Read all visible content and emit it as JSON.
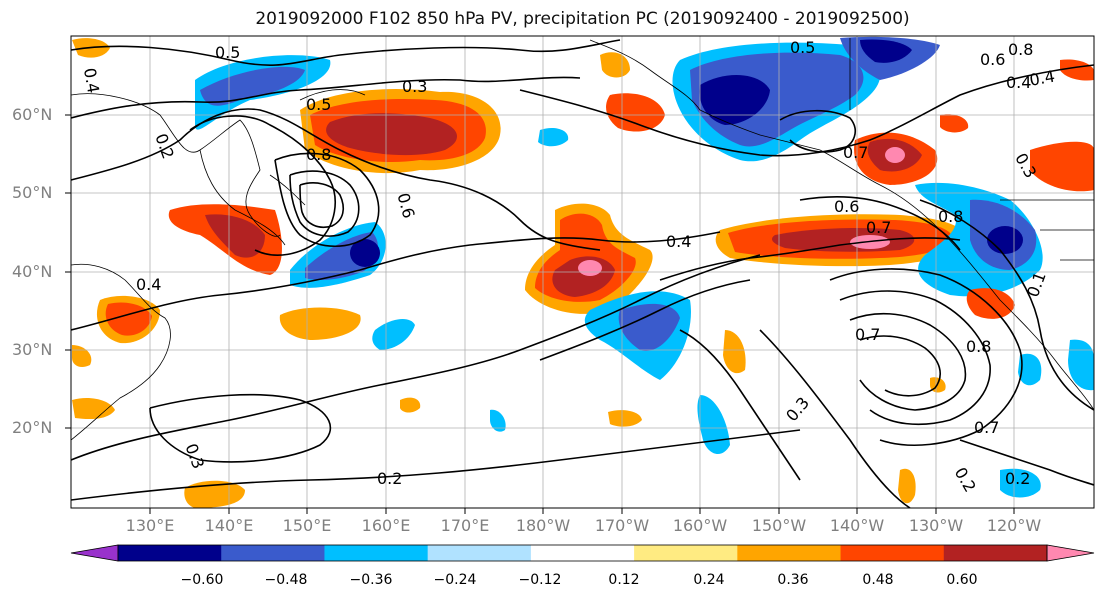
{
  "title": "2019092000 F102 850 hPa PV, precipitation PC (2019092400 - 2019092500)",
  "map": {
    "lat_labels": [
      "60°N",
      "50°N",
      "40°N",
      "30°N",
      "20°N"
    ],
    "lon_labels": [
      "130°E",
      "140°E",
      "150°E",
      "160°E",
      "170°E",
      "180°W",
      "170°W",
      "160°W",
      "150°W",
      "140°W",
      "130°W",
      "120°W"
    ],
    "contour_labels": [
      "0.5",
      "0.4",
      "0.3",
      "0.2",
      "0.8",
      "0.6",
      "0.5",
      "0.4",
      "0.8",
      "0.6",
      "0.4",
      "0.7",
      "0.6",
      "0.7",
      "0.8",
      "0.5",
      "0.4",
      "0.7",
      "0.8",
      "0.3",
      "0.7",
      "0.2",
      "0.2",
      "0.3",
      "0.2",
      "0.4",
      "0.3",
      "0.1"
    ]
  },
  "colorbar": {
    "colors": [
      "#9932CC",
      "#00008B",
      "#3A5BCC",
      "#00BFFF",
      "#B0E2FF",
      "#FFFFFF",
      "#FFEB82",
      "#FFA500",
      "#FF4500",
      "#B22222",
      "#FF88B0"
    ],
    "tick_labels": [
      "−0.60",
      "−0.48",
      "−0.36",
      "−0.24",
      "−0.12",
      "0.12",
      "0.24",
      "0.36",
      "0.48",
      "0.60"
    ]
  },
  "colors": {
    "coast": "#000000",
    "grid": "#b0b0b0",
    "contour": "#000000"
  }
}
